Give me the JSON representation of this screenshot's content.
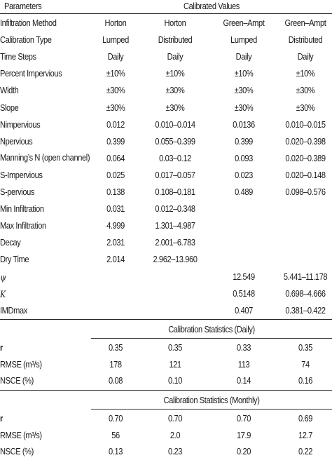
{
  "header": {
    "parameters": "Parameters",
    "calibrated_values": "Calibrated Values"
  },
  "rows": [
    {
      "label": "Infiltration Method",
      "v": [
        "Horton",
        "Horton",
        "Green–Ampt",
        "Green–Ampt"
      ]
    },
    {
      "label": "Calibration Type",
      "v": [
        "Lumped",
        "Distributed",
        "Lumped",
        "Distributed"
      ]
    },
    {
      "label": "Time Steps",
      "v": [
        "Daily",
        "Daily",
        "Daily",
        "Daily"
      ]
    },
    {
      "label": "Percent Impervious",
      "v": [
        "±10%",
        "±10%",
        "±10%",
        "±10%"
      ]
    },
    {
      "label": "Width",
      "v": [
        "±30%",
        "±30%",
        "±30%",
        "±30%"
      ]
    },
    {
      "label": "Slope",
      "v": [
        "±30%",
        "±30%",
        "±30%",
        "±30%"
      ]
    },
    {
      "label": "Nimpervious",
      "v": [
        "0.012",
        "0.010–0.014",
        "0.0136",
        "0.010–0.015"
      ]
    },
    {
      "label": "Npervious",
      "v": [
        "0.399",
        "0.055–0.399",
        "0.399",
        "0.020–0.398"
      ]
    },
    {
      "label": "Manning’s N (open channel)",
      "v": [
        "0.064",
        "0.03–0.12",
        "0.093",
        "0.020–0.389"
      ]
    },
    {
      "label": "S-Impervious",
      "v": [
        "0.025",
        "0.017–0.057",
        "0.023",
        "0.020–0.148"
      ]
    },
    {
      "label": "S-pervious",
      "v": [
        "0.138",
        "0.108–0.181",
        "0.489",
        "0.098–0.576"
      ]
    },
    {
      "label": "Min Infiltration",
      "v": [
        "0.031",
        "0.012–0.348",
        "",
        ""
      ]
    },
    {
      "label": "Max Infiltration",
      "v": [
        "4.999",
        "1.301–4.987",
        "",
        ""
      ]
    },
    {
      "label": "Decay",
      "v": [
        "2.031",
        "2.001–6.783",
        "",
        ""
      ]
    },
    {
      "label": "Dry Time",
      "v": [
        "2.014",
        "2.962–13.960",
        "",
        ""
      ]
    },
    {
      "label": "ψ",
      "v": [
        "",
        "",
        "12.549",
        "5.441–11.178"
      ]
    },
    {
      "label": "K",
      "v": [
        "",
        "",
        "0.5148",
        "0.698–4.666"
      ]
    },
    {
      "label": "IMDmax",
      "v": [
        "",
        "",
        "0.407",
        "0.381–0.422"
      ]
    }
  ],
  "daily": {
    "title": "Calibration Statistics (Daily)",
    "rows": [
      {
        "label": "r",
        "v": [
          "0.35",
          "0.35",
          "0.33",
          "0.35"
        ]
      },
      {
        "label": "RMSE (m³/s)",
        "v": [
          "178",
          "121",
          "113",
          "74"
        ]
      },
      {
        "label": "NSCE (%)",
        "v": [
          "0.08",
          "0.10",
          "0.14",
          "0.16"
        ]
      }
    ]
  },
  "monthly": {
    "title": "Calibration Statistics (Monthly)",
    "rows": [
      {
        "label": "r",
        "v": [
          "0.70",
          "0.70",
          "0.70",
          "0.69"
        ]
      },
      {
        "label": "RMSE (m³/s)",
        "v": [
          "56",
          "2.0",
          "17.9",
          "12.7"
        ]
      },
      {
        "label": "NSCE (%)",
        "v": [
          "0.13",
          "0.23",
          "0.20",
          "0.22"
        ]
      }
    ]
  }
}
